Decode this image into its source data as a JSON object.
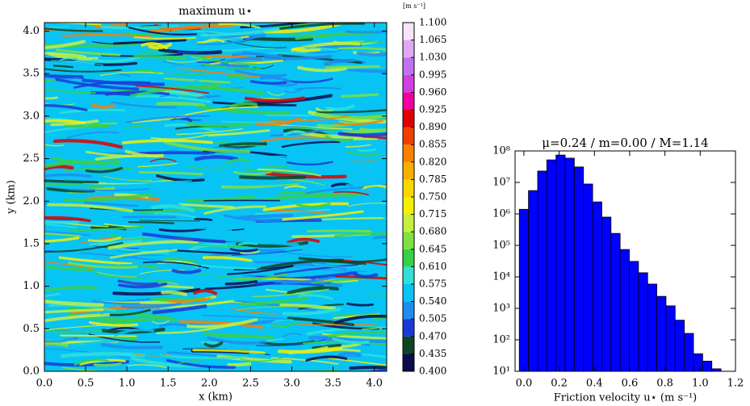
{
  "chart_data": [
    {
      "type": "heatmap",
      "title": "maximum u⋆",
      "xlabel": "x (km)",
      "ylabel": "y (km)",
      "xlim": [
        0,
        4.15
      ],
      "ylim": [
        0,
        4.1
      ],
      "xticks": [
        {
          "value": 0,
          "label": "0.0"
        },
        0.5,
        {
          "value": 1,
          "label": "1.0"
        },
        1.5,
        {
          "value": 2,
          "label": "2.0"
        },
        2.5,
        {
          "value": 3,
          "label": "3.0"
        },
        3.5,
        {
          "value": 4,
          "label": "4.0"
        }
      ],
      "yticks": [
        {
          "value": 0,
          "label": "0.0"
        },
        0.5,
        {
          "value": 1,
          "label": "1.0"
        },
        1.5,
        {
          "value": 2,
          "label": "2.0"
        },
        2.5,
        {
          "value": 3,
          "label": "3.0"
        },
        3.5,
        {
          "value": 4,
          "label": "4.0"
        }
      ],
      "colorbar_unit": "[m s⁻¹]",
      "clim": [
        0.4,
        1.1
      ],
      "colorbar_ticks": [
        {
          "value": 0.4,
          "label": "0.400"
        },
        0.435,
        {
          "value": 0.47,
          "label": "0.470"
        },
        0.505,
        {
          "value": 0.54,
          "label": "0.540"
        },
        0.575,
        {
          "value": 0.61,
          "label": "0.610"
        },
        0.645,
        {
          "value": 0.68,
          "label": "0.680"
        },
        0.715,
        {
          "value": 0.75,
          "label": "0.750"
        },
        0.785,
        {
          "value": 0.82,
          "label": "0.820"
        },
        0.855,
        {
          "value": 0.89,
          "label": "0.890"
        },
        0.925,
        {
          "value": 0.96,
          "label": "0.960"
        },
        0.995,
        {
          "value": 1.03,
          "label": "1.030"
        },
        1.065,
        {
          "value": 1.1,
          "label": "1.100"
        }
      ],
      "colormap": [
        "#0b0b4e",
        "#0c4424",
        "#1a3ad8",
        "#1e8cf0",
        "#08c4f4",
        "#30e0d8",
        "#38d048",
        "#80e040",
        "#c4f040",
        "#f4f000",
        "#f8d800",
        "#f8b000",
        "#f88000",
        "#f04000",
        "#e00000",
        "#f000a0",
        "#d040e0",
        "#c070f0",
        "#e0a8f4",
        "#f8e4f8"
      ]
    },
    {
      "type": "histogram",
      "title": "μ=0.24 / m=0.00 / M=1.14",
      "xlabel": "Friction velocity u⋆ (m s⁻¹)",
      "xlim": [
        -0.05,
        1.2
      ],
      "ylim": [
        10,
        100000000
      ],
      "log_y": true,
      "color": "#0000ff",
      "xticks": [
        {
          "value": 0,
          "label": "0.0"
        },
        0.2,
        0.4,
        0.6,
        0.8,
        {
          "value": 1,
          "label": "1.0"
        },
        1.2
      ],
      "yticks": [
        {
          "value": 10,
          "label": "10¹"
        },
        {
          "value": 100,
          "label": "10²"
        },
        {
          "value": 1000,
          "label": "10³"
        },
        {
          "value": 10000,
          "label": "10⁴"
        },
        {
          "value": 100000,
          "label": "10⁵"
        },
        {
          "value": 1000000,
          "label": "10⁶"
        },
        {
          "value": 10000000,
          "label": "10⁷"
        },
        {
          "value": 100000000,
          "label": "10⁸"
        }
      ],
      "bins": [
        -0.026,
        0.026,
        0.078,
        0.13,
        0.182,
        0.234,
        0.286,
        0.338,
        0.39,
        0.442,
        0.494,
        0.546,
        0.598,
        0.65,
        0.702,
        0.754,
        0.806,
        0.858,
        0.91,
        0.962,
        1.014,
        1.066,
        1.118
      ],
      "values": [
        1400000,
        5500000,
        23000000,
        52000000,
        74000000,
        59000000,
        31000000,
        8900000,
        2400000,
        790000,
        240000,
        74000,
        31000,
        13500,
        5900,
        2400,
        1200,
        420,
        160,
        36,
        21,
        12
      ]
    }
  ]
}
